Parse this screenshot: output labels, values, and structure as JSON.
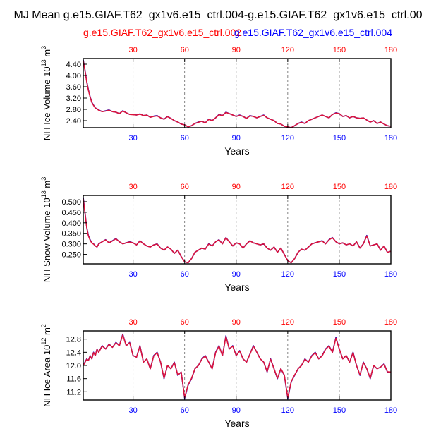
{
  "title": "MJ Mean g.e15.GIAF.T62_gx1v6.e15_ctrl.004-g.e15.GIAF.T62_gx1v6.e15_ctrl.00",
  "subtitle_left": "g.e15.GIAF.T62_gx1v6.e15_ctrl.002",
  "subtitle_right": "g.e15.GIAF.T62_gx1v6.e15_ctrl.004",
  "colors": {
    "series_case": "#dc143c",
    "series_ctrl": "#0000cd",
    "top_ticks": "#ff0000",
    "bottom_ticks": "#0000ff",
    "grid": "#666666"
  },
  "chart_data": [
    {
      "type": "line",
      "ylabel": "NH Ice Volume 10^13 m^3",
      "ylabel_main": "NH Ice Volume 10",
      "ylabel_exp": "13",
      "ylabel_unit": "m",
      "ylabel_unit_exp": "3",
      "xlabel": "Years",
      "xlim": [
        1,
        180
      ],
      "ylim": [
        2.15,
        4.6
      ],
      "yticks": [
        "2.40",
        "2.80",
        "3.20",
        "3.60",
        "4.00",
        "4.40"
      ],
      "xticks_top": [
        "30",
        "60",
        "90",
        "120",
        "150",
        "180"
      ],
      "xticks_bottom": [
        "30",
        "60",
        "90",
        "120",
        "150",
        "180"
      ],
      "grid": "vertical dashed at 30-year intervals",
      "x": [
        1,
        2,
        3,
        4,
        5,
        6,
        7,
        8,
        9,
        10,
        12,
        14,
        16,
        18,
        20,
        22,
        24,
        26,
        28,
        30,
        32,
        34,
        36,
        38,
        40,
        42,
        44,
        46,
        48,
        50,
        52,
        54,
        56,
        58,
        60,
        62,
        64,
        66,
        68,
        70,
        72,
        74,
        76,
        78,
        80,
        82,
        84,
        86,
        88,
        90,
        92,
        94,
        96,
        98,
        100,
        102,
        104,
        106,
        108,
        110,
        112,
        114,
        116,
        118,
        120,
        122,
        124,
        126,
        128,
        130,
        132,
        134,
        136,
        138,
        140,
        142,
        144,
        146,
        148,
        150,
        152,
        154,
        156,
        158,
        160,
        162,
        164,
        166,
        168,
        170,
        172,
        174,
        176,
        178,
        180
      ],
      "series": [
        {
          "name": "g.e15.GIAF.T62_gx1v6.e15_ctrl.002",
          "values": [
            4.55,
            4.2,
            3.8,
            3.5,
            3.25,
            3.05,
            2.95,
            2.85,
            2.82,
            2.78,
            2.72,
            2.75,
            2.78,
            2.72,
            2.7,
            2.65,
            2.75,
            2.68,
            2.62,
            2.62,
            2.6,
            2.64,
            2.58,
            2.6,
            2.52,
            2.56,
            2.58,
            2.5,
            2.45,
            2.55,
            2.48,
            2.4,
            2.35,
            2.28,
            2.25,
            2.18,
            2.22,
            2.3,
            2.35,
            2.38,
            2.32,
            2.45,
            2.4,
            2.5,
            2.62,
            2.58,
            2.7,
            2.65,
            2.6,
            2.55,
            2.6,
            2.55,
            2.48,
            2.58,
            2.55,
            2.5,
            2.55,
            2.6,
            2.5,
            2.45,
            2.4,
            2.3,
            2.28,
            2.2,
            2.18,
            2.15,
            2.22,
            2.3,
            2.35,
            2.3,
            2.4,
            2.45,
            2.5,
            2.55,
            2.6,
            2.55,
            2.5,
            2.62,
            2.68,
            2.65,
            2.55,
            2.58,
            2.5,
            2.55,
            2.5,
            2.48,
            2.5,
            2.42,
            2.35,
            2.4,
            2.3,
            2.35,
            2.28,
            2.22,
            2.2
          ]
        },
        {
          "name": "g.e15.GIAF.T62_gx1v6.e15_ctrl.004",
          "values": [
            4.53,
            4.18,
            3.78,
            3.48,
            3.24,
            3.04,
            2.94,
            2.85,
            2.81,
            2.77,
            2.72,
            2.74,
            2.77,
            2.72,
            2.7,
            2.65,
            2.74,
            2.68,
            2.62,
            2.61,
            2.6,
            2.63,
            2.58,
            2.6,
            2.52,
            2.55,
            2.57,
            2.5,
            2.45,
            2.54,
            2.48,
            2.4,
            2.35,
            2.28,
            2.25,
            2.18,
            2.22,
            2.3,
            2.34,
            2.38,
            2.32,
            2.44,
            2.4,
            2.5,
            2.61,
            2.58,
            2.69,
            2.65,
            2.6,
            2.55,
            2.59,
            2.55,
            2.48,
            2.57,
            2.55,
            2.5,
            2.55,
            2.59,
            2.5,
            2.45,
            2.4,
            2.3,
            2.28,
            2.2,
            2.18,
            2.15,
            2.22,
            2.3,
            2.34,
            2.3,
            2.4,
            2.45,
            2.5,
            2.55,
            2.6,
            2.55,
            2.5,
            2.62,
            2.67,
            2.65,
            2.55,
            2.58,
            2.5,
            2.55,
            2.5,
            2.48,
            2.5,
            2.42,
            2.35,
            2.4,
            2.3,
            2.35,
            2.28,
            2.22,
            2.2
          ]
        }
      ]
    },
    {
      "type": "line",
      "ylabel": "NH Snow Volume 10^13 m^3",
      "ylabel_main": "NH Snow Volume 10",
      "ylabel_exp": "13",
      "ylabel_unit": "m",
      "ylabel_unit_exp": "3",
      "xlabel": "Years",
      "xlim": [
        1,
        180
      ],
      "ylim": [
        0.205,
        0.53
      ],
      "yticks": [
        "0.250",
        "0.300",
        "0.350",
        "0.400",
        "0.450",
        "0.500"
      ],
      "xticks_top": [
        "30",
        "60",
        "90",
        "120",
        "150",
        "180"
      ],
      "xticks_bottom": [
        "30",
        "60",
        "90",
        "120",
        "150",
        "180"
      ],
      "grid": "vertical dashed at 30-year intervals",
      "x": [
        1,
        2,
        3,
        4,
        5,
        6,
        7,
        8,
        9,
        10,
        12,
        14,
        16,
        18,
        20,
        22,
        24,
        26,
        28,
        30,
        32,
        34,
        36,
        38,
        40,
        42,
        44,
        46,
        48,
        50,
        52,
        54,
        56,
        58,
        60,
        62,
        64,
        66,
        68,
        70,
        72,
        74,
        76,
        78,
        80,
        82,
        84,
        86,
        88,
        90,
        92,
        94,
        96,
        98,
        100,
        102,
        104,
        106,
        108,
        110,
        112,
        114,
        116,
        118,
        120,
        122,
        124,
        126,
        128,
        130,
        132,
        134,
        136,
        138,
        140,
        142,
        144,
        146,
        148,
        150,
        152,
        154,
        156,
        158,
        160,
        162,
        164,
        166,
        168,
        170,
        172,
        174,
        176,
        178,
        180
      ],
      "series": [
        {
          "name": "g.e15.GIAF.T62_gx1v6.e15_ctrl.002",
          "values": [
            0.52,
            0.45,
            0.38,
            0.34,
            0.32,
            0.305,
            0.3,
            0.29,
            0.285,
            0.3,
            0.31,
            0.32,
            0.305,
            0.315,
            0.325,
            0.31,
            0.3,
            0.305,
            0.31,
            0.305,
            0.295,
            0.315,
            0.3,
            0.29,
            0.285,
            0.295,
            0.3,
            0.28,
            0.27,
            0.285,
            0.275,
            0.255,
            0.27,
            0.24,
            0.215,
            0.21,
            0.23,
            0.26,
            0.27,
            0.28,
            0.275,
            0.3,
            0.29,
            0.31,
            0.32,
            0.3,
            0.33,
            0.31,
            0.29,
            0.305,
            0.3,
            0.28,
            0.3,
            0.315,
            0.305,
            0.3,
            0.295,
            0.3,
            0.28,
            0.27,
            0.285,
            0.26,
            0.28,
            0.25,
            0.22,
            0.21,
            0.23,
            0.26,
            0.275,
            0.27,
            0.285,
            0.3,
            0.305,
            0.31,
            0.315,
            0.3,
            0.32,
            0.33,
            0.31,
            0.3,
            0.305,
            0.295,
            0.3,
            0.29,
            0.31,
            0.28,
            0.3,
            0.34,
            0.29,
            0.295,
            0.3,
            0.27,
            0.29,
            0.26,
            0.265
          ]
        },
        {
          "name": "g.e15.GIAF.T62_gx1v6.e15_ctrl.004",
          "values": [
            0.515,
            0.448,
            0.378,
            0.338,
            0.318,
            0.304,
            0.299,
            0.29,
            0.285,
            0.299,
            0.31,
            0.319,
            0.305,
            0.314,
            0.324,
            0.31,
            0.3,
            0.305,
            0.309,
            0.305,
            0.295,
            0.314,
            0.3,
            0.29,
            0.285,
            0.295,
            0.299,
            0.28,
            0.27,
            0.285,
            0.275,
            0.255,
            0.27,
            0.24,
            0.215,
            0.21,
            0.23,
            0.26,
            0.27,
            0.28,
            0.275,
            0.299,
            0.29,
            0.31,
            0.319,
            0.3,
            0.329,
            0.31,
            0.29,
            0.305,
            0.3,
            0.28,
            0.3,
            0.314,
            0.305,
            0.3,
            0.295,
            0.3,
            0.28,
            0.27,
            0.285,
            0.26,
            0.28,
            0.25,
            0.22,
            0.21,
            0.23,
            0.26,
            0.275,
            0.27,
            0.285,
            0.3,
            0.305,
            0.31,
            0.314,
            0.3,
            0.319,
            0.329,
            0.31,
            0.3,
            0.305,
            0.295,
            0.3,
            0.29,
            0.31,
            0.28,
            0.3,
            0.338,
            0.29,
            0.295,
            0.3,
            0.27,
            0.29,
            0.26,
            0.265
          ]
        }
      ]
    },
    {
      "type": "line",
      "ylabel": "NH Ice Area 10^12 m^2",
      "ylabel_main": "NH Ice Area 10",
      "ylabel_exp": "12",
      "ylabel_unit": "m",
      "ylabel_unit_exp": "2",
      "xlabel": "Years",
      "xlim": [
        1,
        180
      ],
      "ylim": [
        10.95,
        13.05
      ],
      "yticks": [
        "11.2",
        "11.6",
        "12.0",
        "12.4",
        "12.8"
      ],
      "xticks_top": [
        "30",
        "60",
        "90",
        "120",
        "150",
        "180"
      ],
      "xticks_bottom": [
        "30",
        "60",
        "90",
        "120",
        "150",
        "180"
      ],
      "grid": "vertical dashed at 30-year intervals",
      "x": [
        1,
        2,
        3,
        4,
        5,
        6,
        7,
        8,
        9,
        10,
        12,
        14,
        16,
        18,
        20,
        22,
        24,
        26,
        28,
        30,
        32,
        34,
        36,
        38,
        40,
        42,
        44,
        46,
        48,
        50,
        52,
        54,
        56,
        58,
        60,
        62,
        64,
        66,
        68,
        70,
        72,
        74,
        76,
        78,
        80,
        82,
        84,
        86,
        88,
        90,
        92,
        94,
        96,
        98,
        100,
        102,
        104,
        106,
        108,
        110,
        112,
        114,
        116,
        118,
        120,
        122,
        124,
        126,
        128,
        130,
        132,
        134,
        136,
        138,
        140,
        142,
        144,
        146,
        148,
        150,
        152,
        154,
        156,
        158,
        160,
        162,
        164,
        166,
        168,
        170,
        172,
        174,
        176,
        178,
        180
      ],
      "series": [
        {
          "name": "g.e15.GIAF.T62_gx1v6.e15_ctrl.002",
          "values": [
            12.0,
            12.1,
            12.2,
            12.15,
            12.3,
            12.2,
            12.4,
            12.3,
            12.5,
            12.4,
            12.6,
            12.5,
            12.65,
            12.55,
            12.7,
            12.6,
            12.95,
            12.6,
            12.7,
            12.3,
            12.25,
            12.6,
            12.1,
            12.2,
            11.9,
            12.3,
            12.4,
            12.1,
            11.6,
            12.0,
            11.9,
            12.1,
            11.7,
            11.8,
            11.0,
            11.4,
            11.6,
            11.9,
            12.0,
            12.2,
            12.3,
            12.1,
            11.9,
            12.4,
            12.6,
            12.3,
            12.9,
            12.5,
            12.6,
            12.3,
            12.45,
            12.2,
            12.1,
            12.35,
            12.6,
            12.4,
            12.2,
            12.1,
            11.8,
            12.2,
            11.9,
            11.6,
            11.9,
            11.7,
            11.0,
            11.5,
            11.7,
            11.9,
            12.0,
            12.2,
            12.1,
            12.3,
            12.4,
            12.2,
            12.3,
            12.5,
            12.6,
            12.4,
            12.85,
            12.5,
            12.2,
            12.3,
            12.1,
            12.4,
            12.0,
            11.7,
            12.1,
            11.9,
            11.6,
            12.0,
            11.9,
            11.95,
            12.05,
            11.8,
            11.8
          ]
        },
        {
          "name": "g.e15.GIAF.T62_gx1v6.e15_ctrl.004",
          "values": [
            12.0,
            12.09,
            12.19,
            12.15,
            12.29,
            12.2,
            12.39,
            12.3,
            12.49,
            12.4,
            12.59,
            12.5,
            12.64,
            12.55,
            12.69,
            12.6,
            12.93,
            12.6,
            12.69,
            12.3,
            12.25,
            12.59,
            12.1,
            12.2,
            11.9,
            12.29,
            12.39,
            12.1,
            11.61,
            12.0,
            11.9,
            12.09,
            11.71,
            11.8,
            11.02,
            11.41,
            11.61,
            11.9,
            12.0,
            12.19,
            12.29,
            12.1,
            11.9,
            12.39,
            12.59,
            12.3,
            12.88,
            12.5,
            12.59,
            12.3,
            12.44,
            12.2,
            12.1,
            12.34,
            12.59,
            12.4,
            12.2,
            12.1,
            11.81,
            12.19,
            11.9,
            11.61,
            11.9,
            11.71,
            11.02,
            11.51,
            11.71,
            11.9,
            12.0,
            12.19,
            12.1,
            12.29,
            12.39,
            12.2,
            12.29,
            12.49,
            12.59,
            12.4,
            12.83,
            12.5,
            12.2,
            12.3,
            12.1,
            12.39,
            12.0,
            11.71,
            12.09,
            11.9,
            11.61,
            12.0,
            11.9,
            11.95,
            12.04,
            11.81,
            11.8
          ]
        }
      ]
    }
  ]
}
